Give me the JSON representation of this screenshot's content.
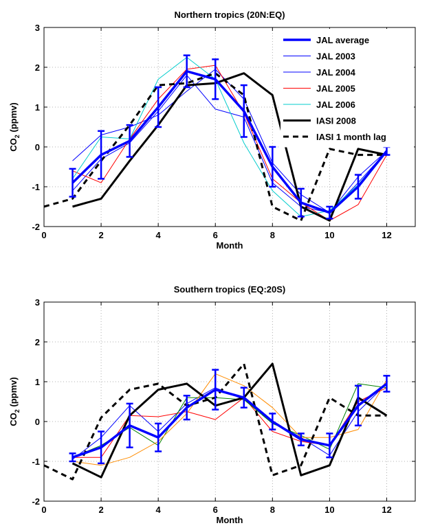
{
  "chart_data": [
    {
      "type": "line",
      "title": "Northern tropics (20N:EQ)",
      "xlabel": "Month",
      "ylabel": "CO",
      "ylabel_sub": "2",
      "ylabel_unit": " (ppmv)",
      "xlim": [
        0,
        13
      ],
      "ylim": [
        -2,
        3
      ],
      "xticks": [
        0,
        2,
        4,
        6,
        8,
        10,
        12
      ],
      "yticks": [
        -2,
        -1,
        0,
        1,
        2,
        3
      ],
      "grid": true,
      "legend_position": "top-right",
      "series": [
        {
          "name": "JAL 2003",
          "color": "#0000ff",
          "width": 1,
          "dash": "",
          "x": [
            1,
            2,
            3,
            4,
            5,
            6,
            7,
            8,
            9,
            10,
            11,
            12
          ],
          "y": [
            -0.35,
            0.3,
            0.5,
            0.8,
            1.4,
            1.95,
            1.2,
            -0.4,
            -1.2,
            -1.65,
            -0.9,
            -0.1
          ]
        },
        {
          "name": "JAL 2004",
          "color": "#0000ff",
          "width": 1,
          "dash": "",
          "x": [
            1,
            2,
            3,
            4,
            5,
            6,
            7,
            8,
            9,
            10,
            11,
            12
          ],
          "y": [
            -1.1,
            -0.3,
            0.1,
            0.9,
            1.8,
            0.95,
            0.75,
            -0.9,
            -1.5,
            -1.65,
            -0.75,
            -0.1
          ]
        },
        {
          "name": "JAL 2005",
          "color": "#ff0000",
          "width": 1,
          "dash": "",
          "x": [
            1,
            2,
            3,
            4,
            5,
            6,
            7,
            8,
            9,
            10,
            11,
            12
          ],
          "y": [
            -0.6,
            -0.9,
            0.2,
            1.2,
            1.95,
            2.05,
            0.85,
            -0.8,
            -1.4,
            -1.85,
            -1.45,
            -0.2
          ]
        },
        {
          "name": "JAL 2006",
          "color": "#00cccc",
          "width": 1,
          "dash": "",
          "x": [
            1,
            2,
            3,
            4,
            5,
            6,
            7,
            8,
            9,
            10,
            11,
            12
          ],
          "y": [
            -0.8,
            0.25,
            0.2,
            1.7,
            2.25,
            1.7,
            0.1,
            -1.1,
            -1.75,
            -1.6,
            -0.95,
            -0.1
          ]
        },
        {
          "name": "IASI 2008",
          "color": "#000000",
          "width": 3,
          "dash": "",
          "x": [
            1,
            2,
            3,
            4,
            5,
            6,
            7,
            8,
            9,
            10,
            11,
            12
          ],
          "y": [
            -1.5,
            -1.3,
            -0.35,
            0.55,
            1.55,
            1.6,
            1.85,
            1.3,
            -1.5,
            -1.85,
            -0.05,
            -0.2
          ]
        },
        {
          "name": "IASI 1 month lag",
          "color": "#000000",
          "width": 3,
          "dash": "8,6",
          "x": [
            0,
            1,
            2,
            3,
            4,
            5,
            6,
            7,
            8,
            9,
            10,
            11,
            12
          ],
          "y": [
            -1.5,
            -1.3,
            -0.35,
            0.55,
            1.55,
            1.6,
            1.85,
            1.3,
            -1.5,
            -1.85,
            -0.05,
            -0.2,
            -0.2
          ]
        },
        {
          "name": "JAL average",
          "color": "#0000ff",
          "width": 3.5,
          "dash": "",
          "x": [
            1,
            2,
            3,
            4,
            5,
            6,
            7,
            8,
            9,
            10,
            11,
            12
          ],
          "y": [
            -0.9,
            -0.2,
            0.15,
            1.0,
            1.9,
            1.7,
            0.9,
            -0.5,
            -1.4,
            -1.65,
            -1.0,
            -0.1
          ],
          "err": [
            0.35,
            0.6,
            0.4,
            0.5,
            0.4,
            0.5,
            0.65,
            0.5,
            0.35,
            0.15,
            0.3,
            0.1
          ]
        }
      ],
      "legend": [
        "JAL average",
        "JAL 2003",
        "JAL 2004",
        "JAL 2005",
        "JAL 2006",
        "IASI 2008",
        "IASI 1 month lag"
      ]
    },
    {
      "type": "line",
      "title": "Southern tropics (EQ:20S)",
      "xlabel": "Month",
      "ylabel": "CO",
      "ylabel_sub": "2",
      "ylabel_unit": " (ppmv)",
      "xlim": [
        0,
        13
      ],
      "ylim": [
        -2,
        3
      ],
      "xticks": [
        0,
        2,
        4,
        6,
        8,
        10,
        12
      ],
      "yticks": [
        -2,
        -1,
        0,
        1,
        2,
        3
      ],
      "grid": true,
      "series": [
        {
          "color": "#0000ff",
          "width": 1,
          "dash": "",
          "x": [
            1,
            2,
            3,
            4,
            5,
            6,
            7,
            8,
            9,
            10,
            11,
            12
          ],
          "y": [
            -0.95,
            -0.4,
            0.4,
            -0.25,
            0.45,
            0.85,
            0.55,
            0.0,
            -0.4,
            -0.85,
            0.25,
            0.95
          ]
        },
        {
          "color": "#ff0000",
          "width": 1,
          "dash": "",
          "x": [
            1,
            2,
            3,
            4,
            5,
            6,
            7,
            8,
            9,
            10,
            11,
            12
          ],
          "y": [
            -0.9,
            -0.9,
            0.15,
            0.12,
            0.25,
            0.05,
            0.6,
            -0.25,
            -0.5,
            -0.6,
            0.5,
            0.85
          ]
        },
        {
          "color": "#008000",
          "width": 1,
          "dash": "",
          "x": [
            1,
            2,
            3,
            4,
            5,
            6,
            7,
            8,
            9,
            10,
            11,
            12
          ],
          "y": [
            -0.9,
            -0.6,
            -0.15,
            -0.6,
            0.6,
            0.6,
            0.55,
            -0.05,
            -0.35,
            -0.7,
            0.95,
            0.85
          ]
        },
        {
          "color": "#ff8c00",
          "width": 1,
          "dash": "",
          "x": [
            1,
            2,
            3,
            4,
            5,
            6,
            7,
            8,
            9,
            10,
            11,
            12
          ],
          "y": [
            -1.0,
            -1.1,
            -0.9,
            -0.5,
            0.2,
            1.2,
            0.9,
            0.35,
            -0.4,
            -0.4,
            -0.2,
            1.05
          ]
        },
        {
          "color": "#000000",
          "width": 3,
          "dash": "",
          "x": [
            1,
            2,
            3,
            4,
            5,
            6,
            7,
            8,
            9,
            10,
            11,
            12
          ],
          "y": [
            -1.05,
            -1.4,
            0.15,
            0.8,
            0.95,
            0.4,
            0.6,
            1.45,
            -1.35,
            -1.1,
            0.6,
            0.15
          ]
        },
        {
          "color": "#000000",
          "width": 3,
          "dash": "8,6",
          "x": [
            0,
            1,
            2,
            3,
            4,
            5,
            6,
            7,
            8,
            9,
            10,
            11,
            12
          ],
          "y": [
            -1.1,
            -1.45,
            0.1,
            0.8,
            0.95,
            0.4,
            0.6,
            1.45,
            -1.35,
            -1.1,
            0.6,
            0.15,
            0.15
          ]
        },
        {
          "color": "#0000ff",
          "width": 3.5,
          "dash": "",
          "x": [
            1,
            2,
            3,
            4,
            5,
            6,
            7,
            8,
            9,
            10,
            11,
            12
          ],
          "y": [
            -0.9,
            -0.65,
            -0.1,
            -0.4,
            0.35,
            0.8,
            0.6,
            0.0,
            -0.45,
            -0.6,
            0.4,
            0.95
          ],
          "err": [
            0.1,
            0.4,
            0.55,
            0.35,
            0.3,
            0.5,
            0.25,
            0.2,
            0.15,
            0.3,
            0.5,
            0.2
          ]
        }
      ]
    }
  ]
}
